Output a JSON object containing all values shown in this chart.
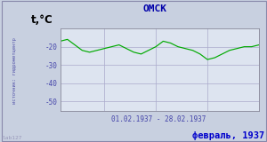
{
  "title": "ОМСК",
  "ylabel": "t,°C",
  "xlabel_range": "01.02.1937 - 28.02.1937",
  "footer_text": "февраль, 1937",
  "source_text": "источник: гидрометцентр",
  "watermark": "lab127",
  "ylim": [
    -55,
    -10
  ],
  "yticks": [
    -50,
    -40,
    -30,
    -20
  ],
  "line_color": "#00aa00",
  "bg_color": "#c8d0e0",
  "plot_bg_color": "#dde4f0",
  "title_color": "#0000aa",
  "footer_color": "#0000cc",
  "source_color": "#5555aa",
  "watermark_color": "#9999bb",
  "tick_color": "#4444aa",
  "grid_color": "#aaaacc",
  "temps": [
    -17,
    -16,
    -19,
    -22,
    -23,
    -22,
    -21,
    -20,
    -19,
    -21,
    -23,
    -24,
    -22,
    -20,
    -17,
    -18,
    -20,
    -21,
    -22,
    -24,
    -27,
    -26,
    -24,
    -22,
    -21,
    -20,
    -20,
    -19
  ]
}
